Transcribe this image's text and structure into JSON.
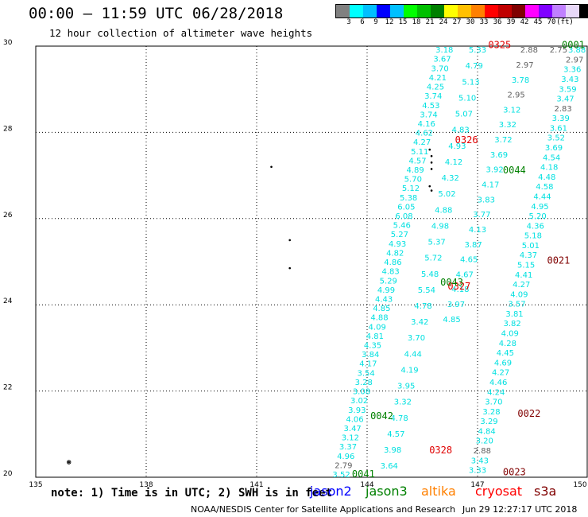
{
  "title": "00:00 – 11:59 UTC 06/28/2018",
  "subtitle": "12 hour collection of altimeter wave heights",
  "colorbar": {
    "colors": [
      "#808080",
      "#00ffff",
      "#00bfff",
      "#0000ff",
      "#00c0ff",
      "#00ff00",
      "#00c000",
      "#008000",
      "#ffff00",
      "#ffc000",
      "#ff8000",
      "#ff0000",
      "#c00000",
      "#800000",
      "#ff00ff",
      "#8000ff",
      "#c080ff",
      "#e8d8f8",
      "#000000"
    ],
    "labels": [
      "3",
      "6",
      "9",
      "12",
      "15",
      "18",
      "21",
      "24",
      "27",
      "30",
      "33",
      "36",
      "39",
      "42",
      "45",
      "70",
      "(ft)"
    ]
  },
  "note": "note: 1) Time is in UTC; 2) SWH is in feet",
  "legend": [
    {
      "name": "jason2",
      "color": "#0000ff"
    },
    {
      "name": "jason3",
      "color": "#008000"
    },
    {
      "name": "altika",
      "color": "#ff8000"
    },
    {
      "name": "cryosat",
      "color": "#ff0000"
    },
    {
      "name": "s3a",
      "color": "#800000"
    }
  ],
  "credit": "NOAA/NESDIS Center for Satellite Applications and Research",
  "timestamp": "Jun 29 12:27:17 UTC 2018",
  "chart_data": {
    "type": "scatter",
    "xlim": [
      135,
      150
    ],
    "ylim": [
      20,
      30
    ],
    "x_ticks": [
      "135",
      "138",
      "141",
      "144",
      "147",
      "150"
    ],
    "y_ticks": [
      "20",
      "22",
      "24",
      "26",
      "28",
      "30"
    ],
    "grid": true,
    "track_color": "#00e0e0",
    "tracks": [
      {
        "from": [
          146.1,
          29.85
        ],
        "to": [
          143.3,
          20.0
        ],
        "values": [
          "3.18",
          "3.67",
          "3.70",
          "4.21",
          "4.25",
          "3.74",
          "4.53",
          "3.74",
          "4.16",
          "4.62",
          "4.27",
          "5.11",
          "4.57",
          "4.89",
          "5.70",
          "5.12",
          "5.38",
          "6.05",
          "6.08",
          "5.46",
          "5.27",
          "4.93",
          "4.82",
          "4.86",
          "4.83",
          "5.29",
          "4.99",
          "4.43",
          "4.85",
          "4.88",
          "4.09",
          "4.81",
          "4.35",
          "3.84",
          "4.17",
          "3.54",
          "3.28",
          "3.08",
          "3.02",
          "3.93",
          "4.06",
          "3.47",
          "3.12",
          "3.37",
          "4.96",
          "2.79",
          "3.52"
        ]
      },
      {
        "from": [
          147.0,
          29.85
        ],
        "to": [
          144.6,
          20.2
        ],
        "values": [
          "5.33",
          "4.79",
          "5.13",
          "5.10",
          "5.07",
          "4.83",
          "4.93",
          "4.12",
          "4.32",
          "5.02",
          "4.88",
          "4.98",
          "5.37",
          "5.72",
          "5.48",
          "5.54",
          "4.78",
          "3.42",
          "3.70",
          "4.44",
          "4.19",
          "3.95",
          "3.32",
          "4.78",
          "4.57",
          "3.98",
          "3.64"
        ]
      },
      {
        "from": [
          149.7,
          29.85
        ],
        "to": [
          147.0,
          20.1
        ],
        "values": [
          "3.88",
          "2.97",
          "3.36",
          "3.43",
          "3.59",
          "3.47",
          "2.83",
          "3.39",
          "3.61",
          "3.52",
          "3.69",
          "4.54",
          "4.18",
          "4.48",
          "4.58",
          "4.44",
          "4.95",
          "5.20",
          "4.36",
          "5.18",
          "5.01",
          "4.37",
          "5.15",
          "4.41",
          "4.27",
          "4.09",
          "3.57",
          "3.81",
          "3.82",
          "4.09",
          "4.28",
          "4.45",
          "4.69",
          "4.27",
          "4.46",
          "4.24",
          "3.70",
          "3.28",
          "3.29",
          "4.84",
          "3.20",
          "2.88",
          "3.43",
          "3.33"
        ]
      },
      {
        "from": [
          148.4,
          29.85
        ],
        "to": [
          146.3,
          23.6
        ],
        "values": [
          "2.88",
          "2.97",
          "3.78",
          "2.95",
          "3.12",
          "3.32",
          "3.72",
          "3.69",
          "3.92",
          "4.17",
          "3.83",
          "3.77",
          "4.13",
          "3.87",
          "4.65",
          "4.67",
          "4.18",
          "3.97",
          "4.85"
        ]
      },
      {
        "from": [
          149.2,
          29.85
        ],
        "to": [
          149.2,
          29.85
        ],
        "values": [
          "2.75"
        ]
      }
    ],
    "point_labels": [
      {
        "text": "0325",
        "x": 147.6,
        "y": 29.95,
        "color": "#e00000"
      },
      {
        "text": "0326",
        "x": 146.7,
        "y": 27.75,
        "color": "#e00000"
      },
      {
        "text": "0327",
        "x": 146.5,
        "y": 24.35,
        "color": "#e00000"
      },
      {
        "text": "0328",
        "x": 146.0,
        "y": 20.55,
        "color": "#e00000"
      },
      {
        "text": "0044",
        "x": 148.0,
        "y": 27.05,
        "color": "#008000"
      },
      {
        "text": "0043",
        "x": 146.3,
        "y": 24.45,
        "color": "#008000"
      },
      {
        "text": "0042",
        "x": 144.4,
        "y": 21.35,
        "color": "#008000"
      },
      {
        "text": "0041",
        "x": 143.9,
        "y": 20.0,
        "color": "#008000"
      },
      {
        "text": "0021",
        "x": 149.2,
        "y": 24.95,
        "color": "#800000"
      },
      {
        "text": "0022",
        "x": 148.4,
        "y": 21.4,
        "color": "#800000"
      },
      {
        "text": "0023",
        "x": 148.0,
        "y": 20.05,
        "color": "#800000"
      },
      {
        "text": "0001",
        "x": 149.6,
        "y": 29.95,
        "color": "#008000"
      }
    ],
    "land_points": [
      [
        145.7,
        27.6
      ],
      [
        145.75,
        27.45
      ],
      [
        145.75,
        27.3
      ],
      [
        145.75,
        27.15
      ],
      [
        145.7,
        26.75
      ],
      [
        145.75,
        26.65
      ],
      [
        141.4,
        27.2
      ],
      [
        141.9,
        25.5
      ],
      [
        141.9,
        24.85
      ],
      [
        135.9,
        20.35
      ]
    ]
  }
}
